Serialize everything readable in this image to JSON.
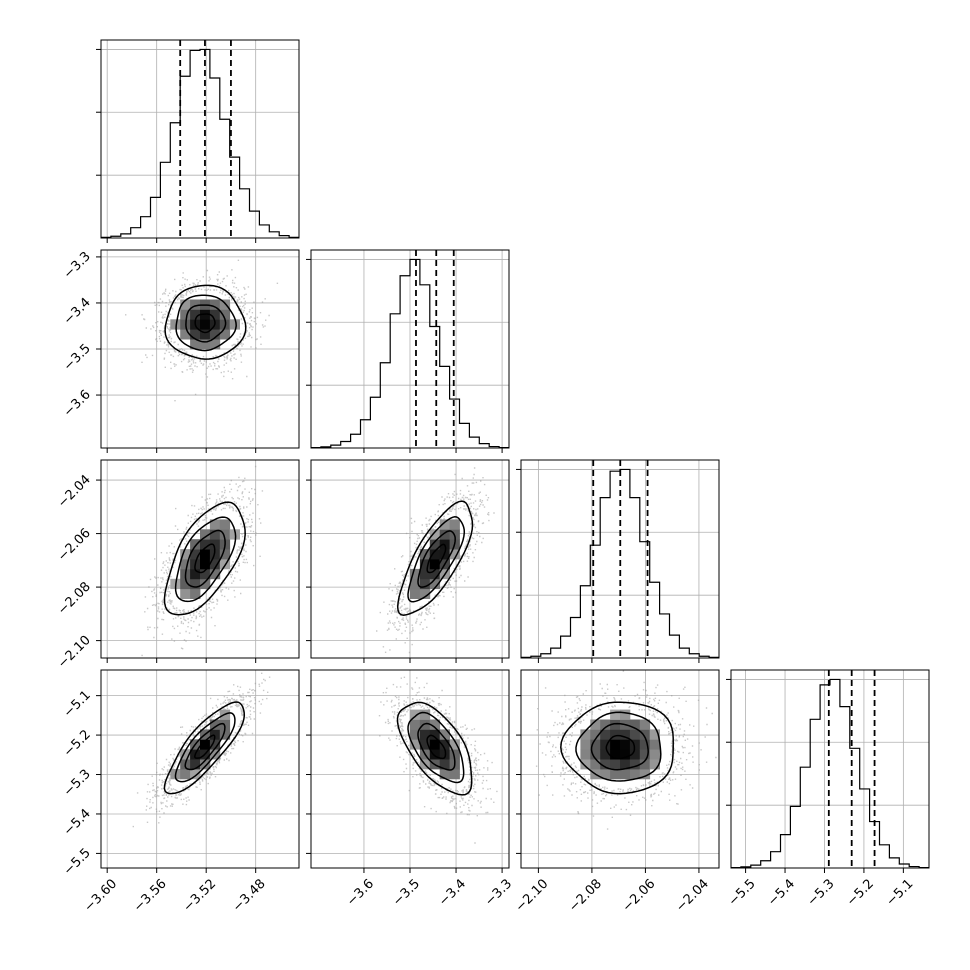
{
  "chart_data": {
    "type": "corner",
    "title": "",
    "parameters": [
      {
        "range": [
          -3.605,
          -3.445
        ],
        "ticks": [
          "−3.60",
          "−3.56",
          "−3.52",
          "−3.48"
        ],
        "tick_values": [
          -3.6,
          -3.56,
          -3.52,
          -3.48
        ],
        "quantiles": [
          -3.541,
          -3.521,
          -3.5
        ],
        "mean": -3.521,
        "sd": 0.016
      },
      {
        "range": [
          -3.715,
          -3.285
        ],
        "ticks": [
          "−3.6",
          "−3.5",
          "−3.4",
          "−3.3"
        ],
        "tick_values": [
          -3.6,
          -3.5,
          -3.4,
          -3.3
        ],
        "quantiles": [
          -3.487,
          -3.443,
          -3.405
        ],
        "mean": -3.443,
        "sd": 0.04
      },
      {
        "range": [
          -2.1065,
          -2.0325
        ],
        "ticks": [
          "−2.10",
          "−2.08",
          "−2.06",
          "−2.04"
        ],
        "tick_values": [
          -2.1,
          -2.08,
          -2.06,
          -2.04
        ],
        "quantiles": [
          -2.0795,
          -2.0694,
          -2.0592
        ],
        "mean": -2.0694,
        "sd": 0.0105
      },
      {
        "range": [
          -5.537,
          -5.035
        ],
        "ticks": [
          "−5.5",
          "−5.4",
          "−5.3",
          "−5.2",
          "−5.1"
        ],
        "tick_values": [
          -5.5,
          -5.4,
          -5.3,
          -5.2,
          -5.1
        ],
        "quantiles": [
          -5.289,
          -5.231,
          -5.173
        ],
        "mean": -5.231,
        "sd": 0.058
      }
    ],
    "histograms": [
      {
        "bins": 20,
        "counts": [
          2,
          5,
          12,
          30,
          62,
          118,
          220,
          335,
          470,
          545,
          548,
          465,
          345,
          235,
          143,
          78,
          38,
          18,
          7,
          2
        ]
      },
      {
        "bins": 20,
        "counts": [
          1,
          3,
          8,
          18,
          38,
          78,
          140,
          235,
          370,
          475,
          520,
          450,
          335,
          225,
          135,
          68,
          30,
          12,
          4,
          1
        ]
      },
      {
        "bins": 20,
        "counts": [
          2,
          5,
          12,
          28,
          62,
          115,
          205,
          320,
          455,
          530,
          535,
          455,
          330,
          215,
          125,
          65,
          28,
          12,
          5,
          2
        ]
      },
      {
        "bins": 20,
        "counts": [
          1,
          3,
          8,
          20,
          45,
          92,
          170,
          278,
          410,
          505,
          520,
          445,
          330,
          218,
          128,
          64,
          28,
          11,
          4,
          1
        ]
      }
    ],
    "correlations": {
      "1-0": 0.0,
      "2-0": 0.6,
      "2-1": 0.75,
      "3-0": 0.82,
      "3-1": -0.6,
      "3-2": 0.0
    },
    "contour_levels_sigma": [
      0.5,
      1.0,
      1.5,
      2.0
    ],
    "grid": true
  }
}
